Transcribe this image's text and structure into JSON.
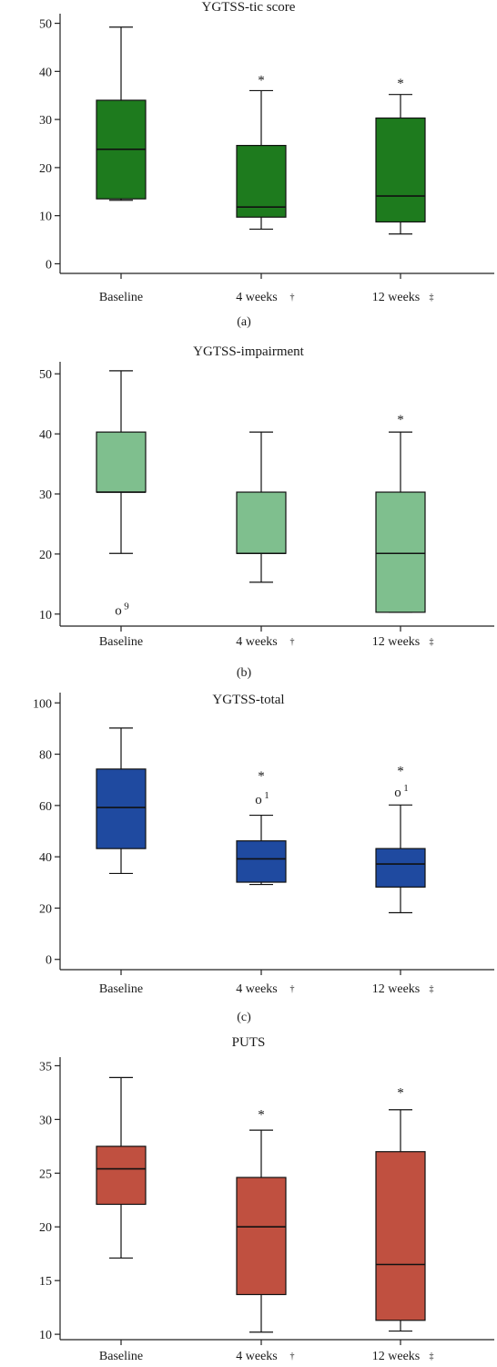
{
  "chart_data": [
    {
      "type": "box",
      "title": "YGTSS-tic score",
      "panel_label": "(a)",
      "color": "#1e7b1e",
      "ylim": [
        -2,
        52
      ],
      "yticks": [
        0,
        10,
        20,
        30,
        40,
        50
      ],
      "categories": [
        "Baseline",
        "4 weeks",
        "12 weeks"
      ],
      "category_markers": [
        "",
        "†",
        "‡"
      ],
      "boxes": [
        {
          "min": 13.2,
          "q1": 13.5,
          "median": 23.8,
          "q3": 34,
          "max": 49.2,
          "annotations": []
        },
        {
          "min": 7.2,
          "q1": 9.7,
          "median": 11.8,
          "q3": 24.6,
          "max": 36,
          "annotations": [
            {
              "text": "*",
              "value": 38.5
            }
          ]
        },
        {
          "min": 6.2,
          "q1": 8.7,
          "median": 14.1,
          "q3": 30.3,
          "max": 35.2,
          "annotations": [
            {
              "text": "*",
              "value": 37.8
            }
          ]
        }
      ]
    },
    {
      "type": "box",
      "title": "YGTSS-impairment",
      "panel_label": "(b)",
      "color": "#7fbf8e",
      "ylim": [
        8,
        52
      ],
      "yticks": [
        10,
        20,
        30,
        40,
        50
      ],
      "categories": [
        "Baseline",
        "4 weeks",
        "12 weeks"
      ],
      "category_markers": [
        "",
        "†",
        "‡"
      ],
      "boxes": [
        {
          "min": 20.1,
          "q1": 30.3,
          "median": 30.3,
          "q3": 40.3,
          "max": 50.5,
          "annotations": [
            {
              "text": "o",
              "superscript": "9",
              "value": 10.5
            }
          ]
        },
        {
          "min": 15.3,
          "q1": 20.1,
          "median": 20.1,
          "q3": 30.3,
          "max": 40.3,
          "annotations": []
        },
        {
          "min": 10.3,
          "q1": 10.3,
          "median": 20.1,
          "q3": 30.3,
          "max": 40.3,
          "annotations": [
            {
              "text": "*",
              "value": 42.6
            }
          ]
        }
      ]
    },
    {
      "type": "box",
      "title": "YGTSS-total",
      "panel_label": "(c)",
      "color": "#1f4aa0",
      "ylim": [
        -4,
        104
      ],
      "yticks": [
        0,
        20,
        40,
        60,
        80,
        100
      ],
      "categories": [
        "Baseline",
        "4 weeks",
        "12 weeks"
      ],
      "category_markers": [
        "",
        "†",
        "‡"
      ],
      "boxes": [
        {
          "min": 33.5,
          "q1": 43.2,
          "median": 59.2,
          "q3": 74.2,
          "max": 90.2,
          "annotations": []
        },
        {
          "min": 29.2,
          "q1": 30.1,
          "median": 39.2,
          "q3": 46.2,
          "max": 56.2,
          "annotations": [
            {
              "text": "*",
              "value": 72
            },
            {
              "text": "o",
              "superscript": "1",
              "value": 62
            }
          ]
        },
        {
          "min": 18.2,
          "q1": 28.2,
          "median": 37.2,
          "q3": 43.2,
          "max": 60.2,
          "annotations": [
            {
              "text": "*",
              "value": 74
            },
            {
              "text": "o",
              "superscript": "1",
              "value": 65
            }
          ]
        }
      ]
    },
    {
      "type": "box",
      "title": "PUTS",
      "panel_label": "(d)",
      "color": "#c05040",
      "ylim": [
        9.5,
        35.8
      ],
      "yticks": [
        10,
        15,
        20,
        25,
        30,
        35
      ],
      "categories": [
        "Baseline",
        "4 weeks",
        "12 weeks"
      ],
      "category_markers": [
        "",
        "†",
        "‡"
      ],
      "boxes": [
        {
          "min": 17.1,
          "q1": 22.1,
          "median": 25.4,
          "q3": 27.5,
          "max": 33.9,
          "annotations": []
        },
        {
          "min": 10.2,
          "q1": 13.7,
          "median": 20.0,
          "q3": 24.6,
          "max": 29.0,
          "annotations": [
            {
              "text": "*",
              "value": 30.6
            }
          ]
        },
        {
          "min": 10.3,
          "q1": 11.3,
          "median": 16.5,
          "q3": 27.0,
          "max": 30.9,
          "annotations": [
            {
              "text": "*",
              "value": 32.6
            }
          ]
        }
      ]
    }
  ]
}
